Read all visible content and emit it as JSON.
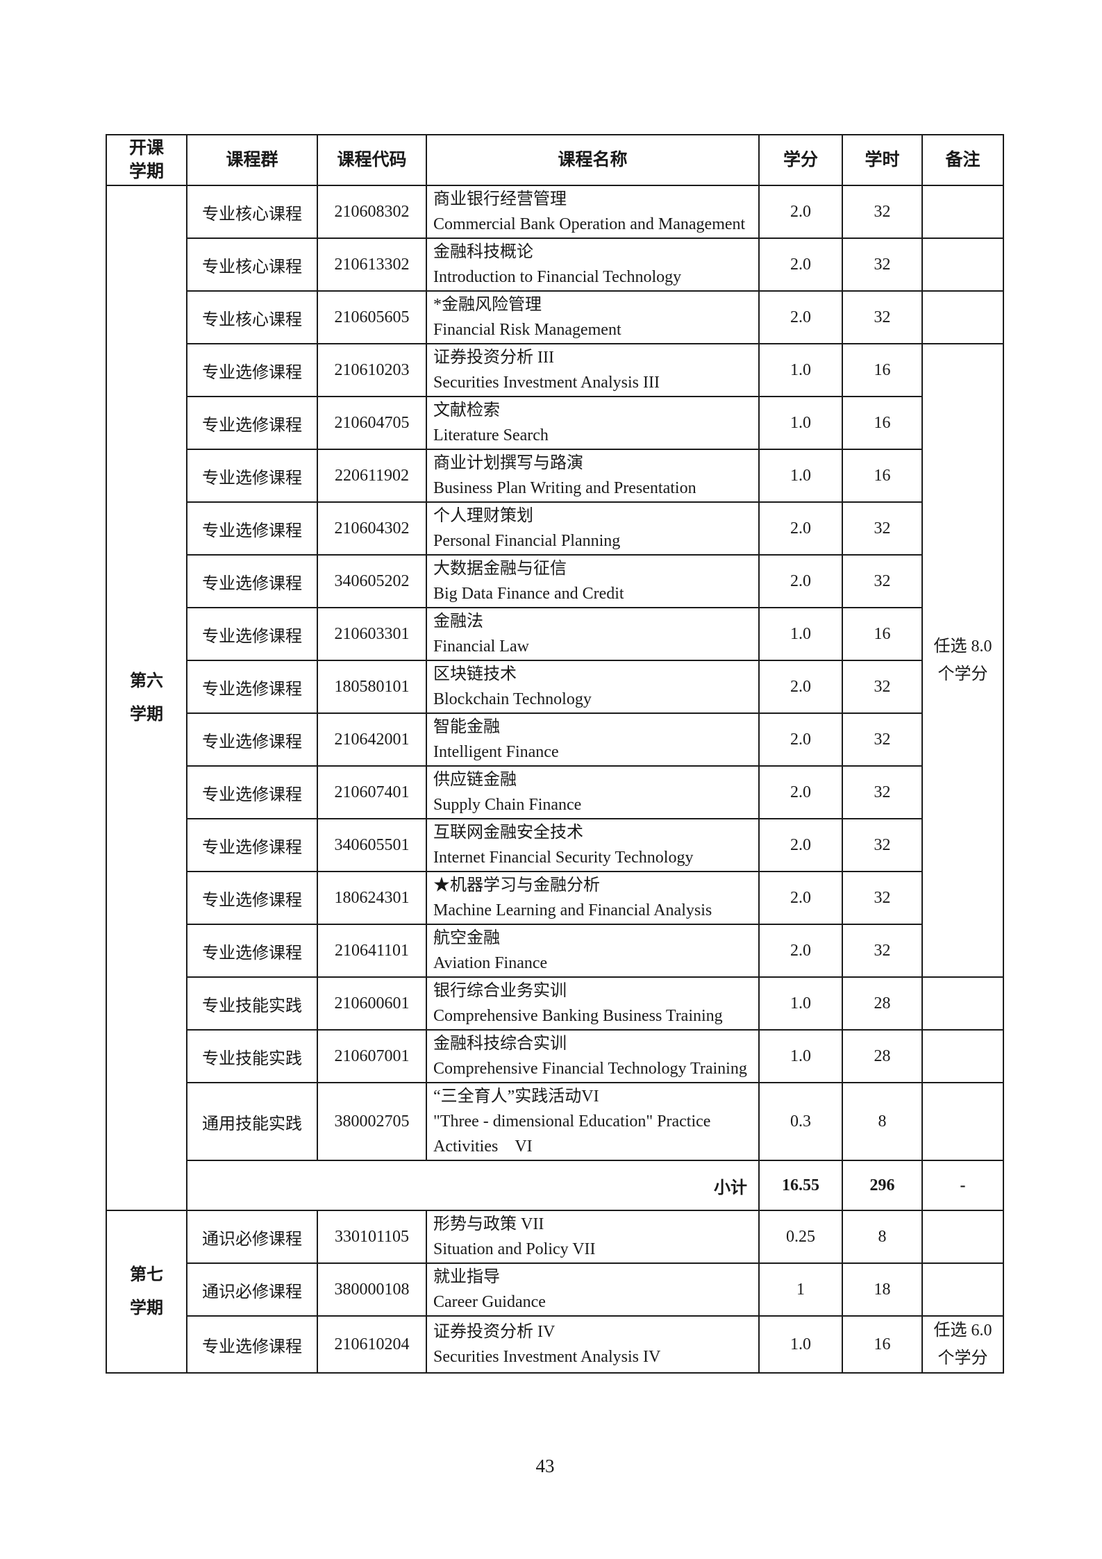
{
  "page": {
    "number": "43"
  },
  "table": {
    "headers": {
      "semester": "开课\n学期",
      "group": "课程群",
      "code": "课程代码",
      "name": "课程名称",
      "credits": "学分",
      "hours": "学时",
      "remarks": "备注"
    },
    "sections": [
      {
        "semester": "第六\n学期",
        "rows": [
          {
            "group": "专业核心课程",
            "code": "210608302",
            "name_zh": "商业银行经营管理",
            "name_en": "Commercial Bank Operation and Management",
            "credits": "2.0",
            "hours": "32",
            "remark": ""
          },
          {
            "group": "专业核心课程",
            "code": "210613302",
            "name_zh": "金融科技概论",
            "name_en": "Introduction to Financial Technology",
            "credits": "2.0",
            "hours": "32",
            "remark": ""
          },
          {
            "group": "专业核心课程",
            "code": "210605605",
            "name_zh": "*金融风险管理",
            "name_en": "Financial Risk Management",
            "credits": "2.0",
            "hours": "32",
            "remark": ""
          },
          {
            "group": "专业选修课程",
            "code": "210610203",
            "name_zh": "证券投资分析 III",
            "name_en": "Securities Investment Analysis III",
            "credits": "1.0",
            "hours": "16",
            "remark": "任选 8.0 个学分",
            "remark_rowspan": 12
          },
          {
            "group": "专业选修课程",
            "code": "210604705",
            "name_zh": "文献检索",
            "name_en": "Literature Search",
            "credits": "1.0",
            "hours": "16",
            "remark": null
          },
          {
            "group": "专业选修课程",
            "code": "220611902",
            "name_zh": "商业计划撰写与路演",
            "name_en": "Business Plan Writing and Presentation",
            "credits": "1.0",
            "hours": "16",
            "remark": null
          },
          {
            "group": "专业选修课程",
            "code": "210604302",
            "name_zh": "个人理财策划",
            "name_en": "Personal Financial Planning",
            "credits": "2.0",
            "hours": "32",
            "remark": null
          },
          {
            "group": "专业选修课程",
            "code": "340605202",
            "name_zh": "大数据金融与征信",
            "name_en": "Big Data Finance and Credit",
            "credits": "2.0",
            "hours": "32",
            "remark": null
          },
          {
            "group": "专业选修课程",
            "code": "210603301",
            "name_zh": "金融法",
            "name_en": "Financial Law",
            "credits": "1.0",
            "hours": "16",
            "remark": null
          },
          {
            "group": "专业选修课程",
            "code": "180580101",
            "name_zh": "区块链技术",
            "name_en": "Blockchain Technology",
            "credits": "2.0",
            "hours": "32",
            "remark": null
          },
          {
            "group": "专业选修课程",
            "code": "210642001",
            "name_zh": "智能金融",
            "name_en": "Intelligent Finance",
            "credits": "2.0",
            "hours": "32",
            "remark": null
          },
          {
            "group": "专业选修课程",
            "code": "210607401",
            "name_zh": "供应链金融",
            "name_en": "Supply Chain Finance",
            "credits": "2.0",
            "hours": "32",
            "remark": null
          },
          {
            "group": "专业选修课程",
            "code": "340605501",
            "name_zh": "互联网金融安全技术",
            "name_en": "Internet Financial Security Technology",
            "credits": "2.0",
            "hours": "32",
            "remark": null
          },
          {
            "group": "专业选修课程",
            "code": "180624301",
            "name_zh": "★机器学习与金融分析",
            "name_en": "Machine Learning and Financial Analysis",
            "credits": "2.0",
            "hours": "32",
            "remark": null
          },
          {
            "group": "专业选修课程",
            "code": "210641101",
            "name_zh": "航空金融",
            "name_en": "Aviation Finance",
            "credits": "2.0",
            "hours": "32",
            "remark": null
          },
          {
            "group": "专业技能实践",
            "code": "210600601",
            "name_zh": "银行综合业务实训",
            "name_en": "Comprehensive Banking Business Training",
            "credits": "1.0",
            "hours": "28",
            "remark": ""
          },
          {
            "group": "专业技能实践",
            "code": "210607001",
            "name_zh": "金融科技综合实训",
            "name_en": "Comprehensive Financial Technology Training",
            "credits": "1.0",
            "hours": "28",
            "remark": ""
          },
          {
            "group": "通用技能实践",
            "code": "380002705",
            "name_zh": "“三全育人”实践活动VI",
            "name_en": "\"Three - dimensional Education\" Practice Activities　VI",
            "credits": "0.3",
            "hours": "8",
            "remark": ""
          }
        ],
        "subtotal": {
          "label": "小计",
          "credits": "16.55",
          "hours": "296",
          "remark": "-"
        }
      },
      {
        "semester": "第七\n学期",
        "rows": [
          {
            "group": "通识必修课程",
            "code": "330101105",
            "name_zh": "形势与政策 VII",
            "name_en": "Situation and Policy VII",
            "credits": "0.25",
            "hours": "8",
            "remark": ""
          },
          {
            "group": "通识必修课程",
            "code": "380000108",
            "name_zh": "就业指导",
            "name_en": "Career Guidance",
            "credits": "1",
            "hours": "18",
            "remark": ""
          },
          {
            "group": "专业选修课程",
            "code": "210610204",
            "name_zh": "证券投资分析 IV",
            "name_en": "Securities Investment Analysis IV",
            "credits": "1.0",
            "hours": "16",
            "remark": "任选 6.0 个学分"
          }
        ]
      }
    ]
  }
}
